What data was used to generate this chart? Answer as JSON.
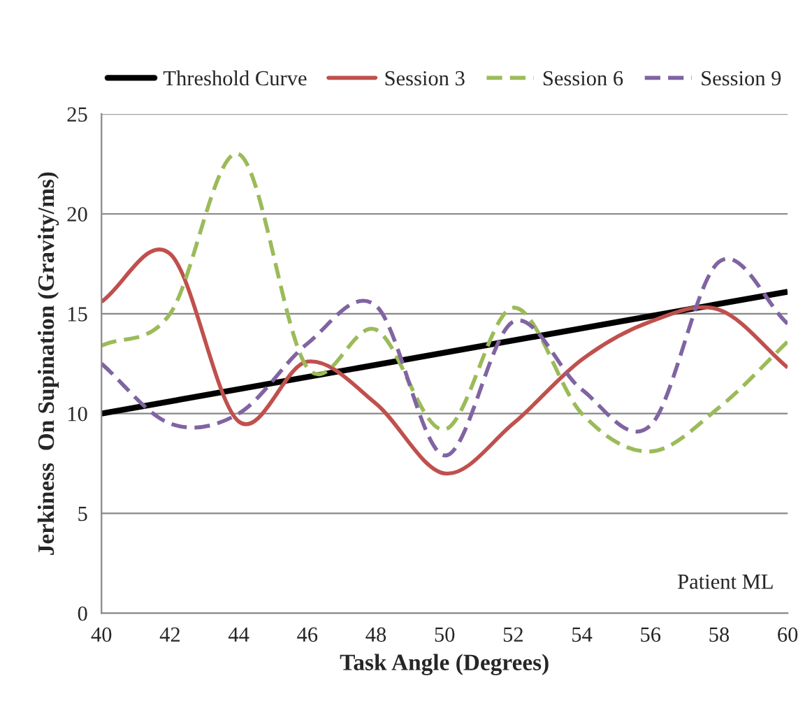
{
  "chart_data": {
    "type": "line",
    "xlabel": "Task Angle (Degrees)",
    "ylabel": "Jerkiness  On Supination (Gravity/ms)",
    "x": [
      40,
      42,
      44,
      46,
      48,
      50,
      52,
      54,
      56,
      58,
      60
    ],
    "series": [
      {
        "name": "Threshold Curve",
        "color": "#000000",
        "line_style": "solid",
        "x": [
          40,
          60
        ],
        "values": [
          10,
          16.1
        ]
      },
      {
        "name": "Session 3",
        "color": "#c0504d",
        "line_style": "solid",
        "values": [
          15.6,
          18,
          9.6,
          12.6,
          10.5,
          7,
          9.5,
          12.7,
          14.6,
          15.2,
          12.3
        ]
      },
      {
        "name": "Session 6",
        "color": "#9bbb59",
        "line_style": "dashed",
        "values": [
          13.4,
          15,
          23,
          12.3,
          14.2,
          9.2,
          15.3,
          10,
          8.1,
          10.3,
          13.6
        ]
      },
      {
        "name": "Session 9",
        "color": "#8064a2",
        "line_style": "dashed",
        "values": [
          12.5,
          9.5,
          10,
          13.5,
          15.4,
          7.9,
          14.6,
          11.2,
          9.4,
          17.6,
          14.5
        ]
      }
    ],
    "xlim": [
      40,
      60
    ],
    "xticks": [
      40,
      42,
      44,
      46,
      48,
      50,
      52,
      54,
      56,
      58,
      60
    ],
    "ylim": [
      0,
      25
    ],
    "yticks": [
      0,
      5,
      10,
      15,
      20,
      25
    ],
    "grid": "y",
    "legend": "top",
    "annotations": [
      "Patient ML"
    ]
  }
}
